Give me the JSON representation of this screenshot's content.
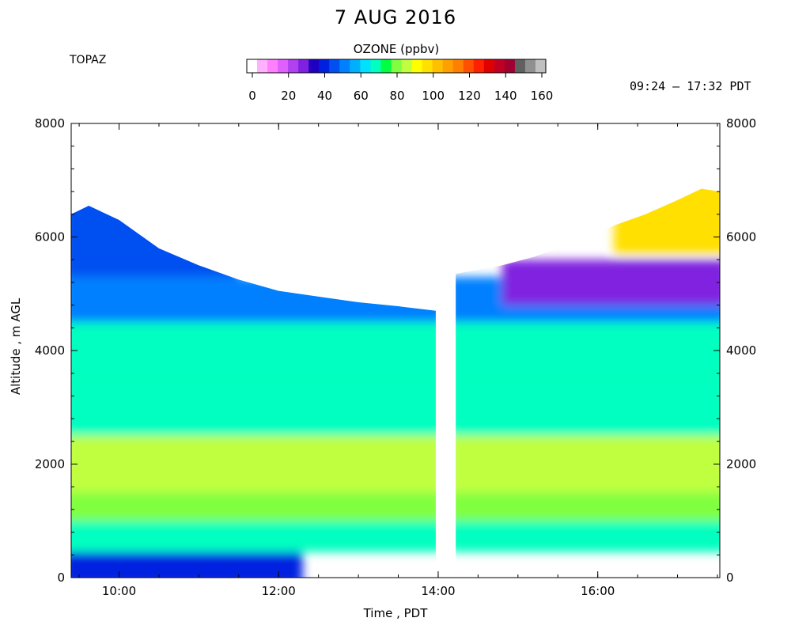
{
  "header": {
    "title": "7 AUG 2016",
    "station": "TOPAZ",
    "time_range": "09:24 – 17:32 PDT"
  },
  "chart_data": {
    "type": "heatmap",
    "title": "7 AUG 2016",
    "xlabel": "Time , PDT",
    "ylabel": "Altitude , m AGL",
    "x_range": [
      "09:24",
      "17:32"
    ],
    "xlim_hours": [
      9.4,
      17.53
    ],
    "ylim": [
      0,
      8000
    ],
    "x_ticks": [
      "10:00",
      "12:00",
      "14:00",
      "16:00"
    ],
    "x_tick_hours": [
      10,
      12,
      14,
      16
    ],
    "y_ticks": [
      0,
      2000,
      4000,
      6000,
      8000
    ],
    "y_ticks_right": [
      0,
      2000,
      4000,
      6000,
      8000
    ],
    "colorbar": {
      "title": "OZONE (ppbv)",
      "range": [
        0,
        160
      ],
      "tick_labels": [
        "0",
        "20",
        "40",
        "60",
        "80",
        "100",
        "120",
        "140",
        "160"
      ],
      "colors": [
        "#ffffff",
        "#ffb0ff",
        "#ff80ff",
        "#e060ff",
        "#b040f0",
        "#8020e0",
        "#2000c0",
        "#0020e0",
        "#0050f0",
        "#0080ff",
        "#00b0ff",
        "#00e0ff",
        "#00ffc0",
        "#00ff40",
        "#80ff40",
        "#c0ff40",
        "#ffff00",
        "#ffe000",
        "#ffc000",
        "#ffa000",
        "#ff8000",
        "#ff5000",
        "#ff2000",
        "#e00000",
        "#c00020",
        "#a00030",
        "#606060",
        "#909090",
        "#c0c0c0"
      ]
    },
    "gap": {
      "from_hour": 13.97,
      "to_hour": 14.22
    },
    "top_boundary_left": [
      [
        9.4,
        6400
      ],
      [
        9.62,
        6550
      ],
      [
        10.0,
        6300
      ],
      [
        10.5,
        5800
      ],
      [
        11.0,
        5500
      ],
      [
        11.5,
        5250
      ],
      [
        12.0,
        5050
      ],
      [
        12.5,
        4950
      ],
      [
        13.0,
        4850
      ],
      [
        13.5,
        4780
      ],
      [
        13.97,
        4700
      ]
    ],
    "top_boundary_right": [
      [
        14.22,
        5350
      ],
      [
        14.8,
        5500
      ],
      [
        15.2,
        5650
      ],
      [
        15.8,
        5950
      ],
      [
        16.2,
        6200
      ],
      [
        16.6,
        6400
      ],
      [
        17.0,
        6650
      ],
      [
        17.3,
        6850
      ],
      [
        17.53,
        6800
      ]
    ],
    "layers": [
      {
        "alt_range": [
          0,
          450
        ],
        "ozone_ppbv": 40,
        "until_hour": 12.3
      },
      {
        "alt_range": [
          450,
          1000
        ],
        "ozone_ppbv": 70
      },
      {
        "alt_range": [
          1000,
          1500
        ],
        "ozone_ppbv": 78
      },
      {
        "alt_range": [
          1500,
          2500
        ],
        "ozone_ppbv": 85
      },
      {
        "alt_range": [
          2500,
          3500
        ],
        "ozone_ppbv": 68
      },
      {
        "alt_range": [
          3500,
          4500
        ],
        "ozone_ppbv": 70
      },
      {
        "alt_range": [
          4500,
          5300
        ],
        "ozone_ppbv": 55
      },
      {
        "alt_range": [
          5300,
          6500
        ],
        "ozone_ppbv": 45,
        "hour_range": [
          9.4,
          11.5
        ]
      },
      {
        "alt_range": [
          4800,
          5600
        ],
        "ozone_ppbv": 32,
        "hour_range": [
          14.8,
          17.53
        ]
      },
      {
        "alt_range": [
          5700,
          6900
        ],
        "ozone_ppbv": 95,
        "hour_range": [
          16.2,
          17.53
        ]
      }
    ]
  }
}
